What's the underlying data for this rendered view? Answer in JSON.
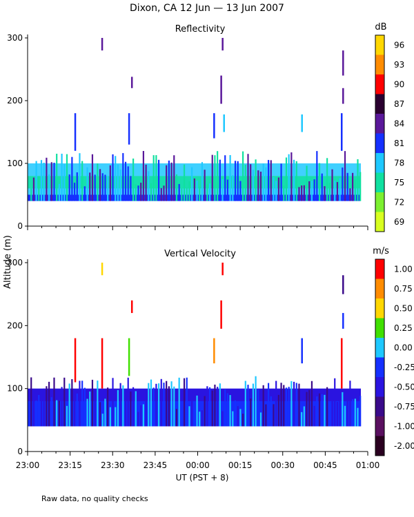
{
  "chart_data": {
    "type": "heatmap",
    "title": "Dixon, CA 12 Jun — 13 Jun 2007",
    "ylabel": "Altitude (m)",
    "xlabel": "UT  (PST + 8)",
    "footnote": "Raw data, no quality checks",
    "x_ticks": [
      "23:00",
      "23:15",
      "23:30",
      "23:45",
      "00:00",
      "00:15",
      "00:30",
      "00:45",
      "01:00"
    ],
    "x_range_minutes": [
      0,
      120
    ],
    "panels": [
      {
        "title": "Reflectivity",
        "unit": "dB",
        "ylim": [
          0,
          300
        ],
        "y_ticks": [
          0,
          100,
          200,
          300
        ],
        "colorbar_labels": [
          "96",
          "93",
          "90",
          "87",
          "84",
          "81",
          "78",
          "75",
          "72",
          "69"
        ],
        "colorbar_colors": [
          "#ffd700",
          "#ff8c00",
          "#ff0000",
          "#2a0030",
          "#5a189a",
          "#1530ff",
          "#1ec8ff",
          "#10e0a0",
          "#7cf030",
          "#d8ff20"
        ],
        "bands": [
          {
            "alt": [
              40,
              50
            ],
            "color": "#1530ff"
          },
          {
            "alt": [
              50,
              80
            ],
            "color": "#1ec8ff"
          },
          {
            "alt": [
              60,
              80
            ],
            "color": "#10e0a0"
          },
          {
            "alt": [
              80,
              100
            ],
            "color": "#1ec8ff"
          }
        ],
        "echoes": [
          {
            "t": 26,
            "alt": [
              280,
              300
            ],
            "color": "#5a189a"
          },
          {
            "t": 36.5,
            "alt": [
              220,
              238
            ],
            "color": "#5a189a"
          },
          {
            "t": 68.5,
            "alt": [
              280,
              300
            ],
            "color": "#5a189a"
          },
          {
            "t": 68,
            "alt": [
              195,
              240
            ],
            "color": "#5a189a"
          },
          {
            "t": 69,
            "alt": [
              150,
              178
            ],
            "color": "#1ec8ff"
          },
          {
            "t": 65.5,
            "alt": [
              140,
              180
            ],
            "color": "#1530ff"
          },
          {
            "t": 96.5,
            "alt": [
              150,
              178
            ],
            "color": "#1ec8ff"
          },
          {
            "t": 111,
            "alt": [
              240,
              280
            ],
            "color": "#5a189a"
          },
          {
            "t": 111,
            "alt": [
              195,
              220
            ],
            "color": "#5a189a"
          },
          {
            "t": 110.5,
            "alt": [
              120,
              180
            ],
            "color": "#1530ff"
          },
          {
            "t": 16.5,
            "alt": [
              120,
              180
            ],
            "color": "#1530ff"
          },
          {
            "t": 35.5,
            "alt": [
              130,
              180
            ],
            "color": "#1530ff"
          }
        ]
      },
      {
        "title": "Vertical Velocity",
        "unit": "m/s",
        "ylim": [
          0,
          300
        ],
        "y_ticks": [
          0,
          100,
          200,
          300
        ],
        "colorbar_labels": [
          "1.00",
          "0.75",
          "0.50",
          "0.25",
          "0.00",
          "-0.25",
          "-0.50",
          "-0.75",
          "-1.00",
          "-2.00"
        ],
        "colorbar_colors": [
          "#ff0000",
          "#ff8c00",
          "#ffd700",
          "#40e000",
          "#1ec8ff",
          "#1530ff",
          "#2a14e0",
          "#3a0a8a",
          "#5a1060",
          "#2a0020"
        ],
        "bands": [
          {
            "alt": [
              40,
              100
            ],
            "color": "#2a14e0"
          },
          {
            "alt": [
              40,
              80
            ],
            "color": "#1530ff"
          }
        ],
        "echoes": [
          {
            "t": 26,
            "alt": [
              280,
              300
            ],
            "color": "#ffd700"
          },
          {
            "t": 36.5,
            "alt": [
              220,
              240
            ],
            "color": "#ff0000"
          },
          {
            "t": 68.5,
            "alt": [
              280,
              300
            ],
            "color": "#ff0000"
          },
          {
            "t": 68,
            "alt": [
              195,
              240
            ],
            "color": "#ff0000"
          },
          {
            "t": 65.5,
            "alt": [
              140,
              180
            ],
            "color": "#ff8c00"
          },
          {
            "t": 96.5,
            "alt": [
              140,
              180
            ],
            "color": "#1530ff"
          },
          {
            "t": 111,
            "alt": [
              250,
              280
            ],
            "color": "#3a0a8a"
          },
          {
            "t": 111,
            "alt": [
              195,
              220
            ],
            "color": "#1530ff"
          },
          {
            "t": 110.5,
            "alt": [
              100,
              180
            ],
            "color": "#ff0000"
          },
          {
            "t": 16.5,
            "alt": [
              110,
              180
            ],
            "color": "#ff0000"
          },
          {
            "t": 26,
            "alt": [
              100,
              180
            ],
            "color": "#ff0000"
          },
          {
            "t": 35.5,
            "alt": [
              120,
              180
            ],
            "color": "#40e000"
          }
        ]
      }
    ]
  }
}
